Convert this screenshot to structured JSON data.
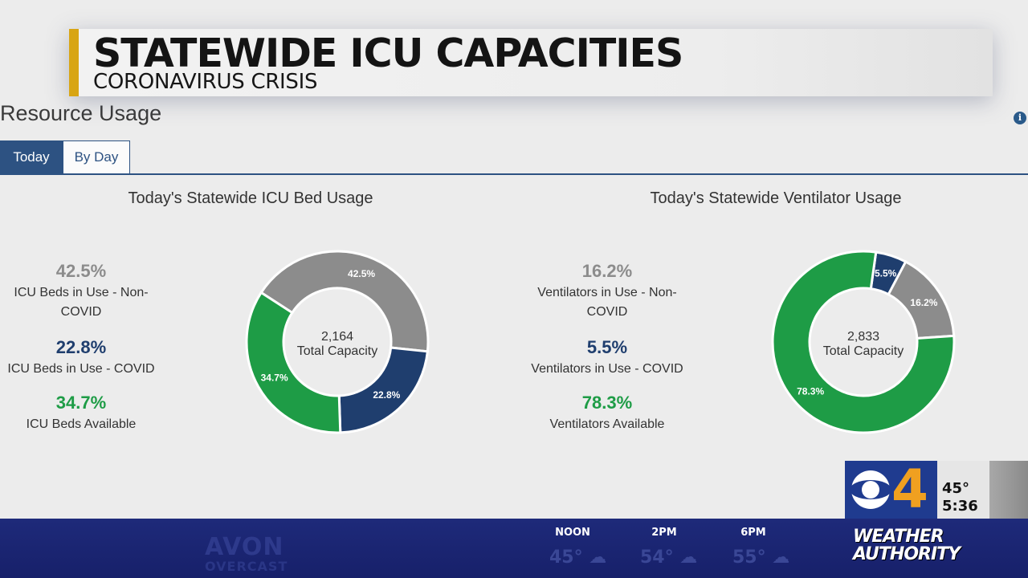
{
  "banner": {
    "title": "STATEWIDE ICU CAPACITIES",
    "subtitle": "CORONAVIRUS CRISIS"
  },
  "page": {
    "title": "Resource Usage",
    "info_icon": "info-icon"
  },
  "tabs": [
    {
      "label": "Today",
      "active": true
    },
    {
      "label": "By Day",
      "active": false
    }
  ],
  "chart_data": [
    {
      "type": "pie",
      "title": "Today's Statewide ICU Bed Usage",
      "center_value": "2,164",
      "center_label": "Total Capacity",
      "series": [
        {
          "name": "ICU Beds in Use - Non-COVID",
          "value": 42.5,
          "label": "42.5%",
          "color": "#8c8c8c"
        },
        {
          "name": "ICU Beds in Use - COVID",
          "value": 22.8,
          "label": "22.8%",
          "color": "#1f3e6e"
        },
        {
          "name": "ICU Beds Available",
          "value": 34.7,
          "label": "34.7%",
          "color": "#1e9c46"
        }
      ],
      "legend": [
        {
          "pct": "42.5%",
          "label": "ICU Beds in Use - Non-COVID",
          "color": "#8c8c8c"
        },
        {
          "pct": "22.8%",
          "label": "ICU Beds in Use - COVID",
          "color": "#1f3e6e"
        },
        {
          "pct": "34.7%",
          "label": "ICU Beds Available",
          "color": "#1e9c46"
        }
      ],
      "legend_placement": "left"
    },
    {
      "type": "pie",
      "title": "Today's Statewide Ventilator Usage",
      "center_value": "2,833",
      "center_label": "Total Capacity",
      "series": [
        {
          "name": "Ventilators in Use - COVID",
          "value": 5.5,
          "label": "5.5%",
          "color": "#1f3e6e"
        },
        {
          "name": "Ventilators in Use - Non-COVID",
          "value": 16.2,
          "label": "16.2%",
          "color": "#8c8c8c"
        },
        {
          "name": "Ventilators Available",
          "value": 78.3,
          "label": "78.3%",
          "color": "#1e9c46"
        }
      ],
      "legend": [
        {
          "pct": "16.2%",
          "label": "Ventilators in Use - Non-COVID",
          "color": "#8c8c8c"
        },
        {
          "pct": "5.5%",
          "label": "Ventilators in Use - COVID",
          "color": "#1f3e6e"
        },
        {
          "pct": "78.3%",
          "label": "Ventilators Available",
          "color": "#1e9c46"
        }
      ],
      "legend_placement": "left"
    }
  ],
  "station": {
    "logo": "cbs-eye-icon",
    "channel": "4",
    "temperature": "45°",
    "time": "5:36"
  },
  "ticker": {
    "city": "AVON",
    "condition": "OVERCAST",
    "forecast": [
      {
        "time": "NOON",
        "temp": "45°",
        "icon": "partly-cloudy-icon"
      },
      {
        "time": "2PM",
        "temp": "54°",
        "icon": "cloud-icon"
      },
      {
        "time": "6PM",
        "temp": "55°",
        "icon": "partly-cloudy-icon"
      }
    ],
    "brand_line1": "WEATHER",
    "brand_line2": "AUTHORITY"
  }
}
